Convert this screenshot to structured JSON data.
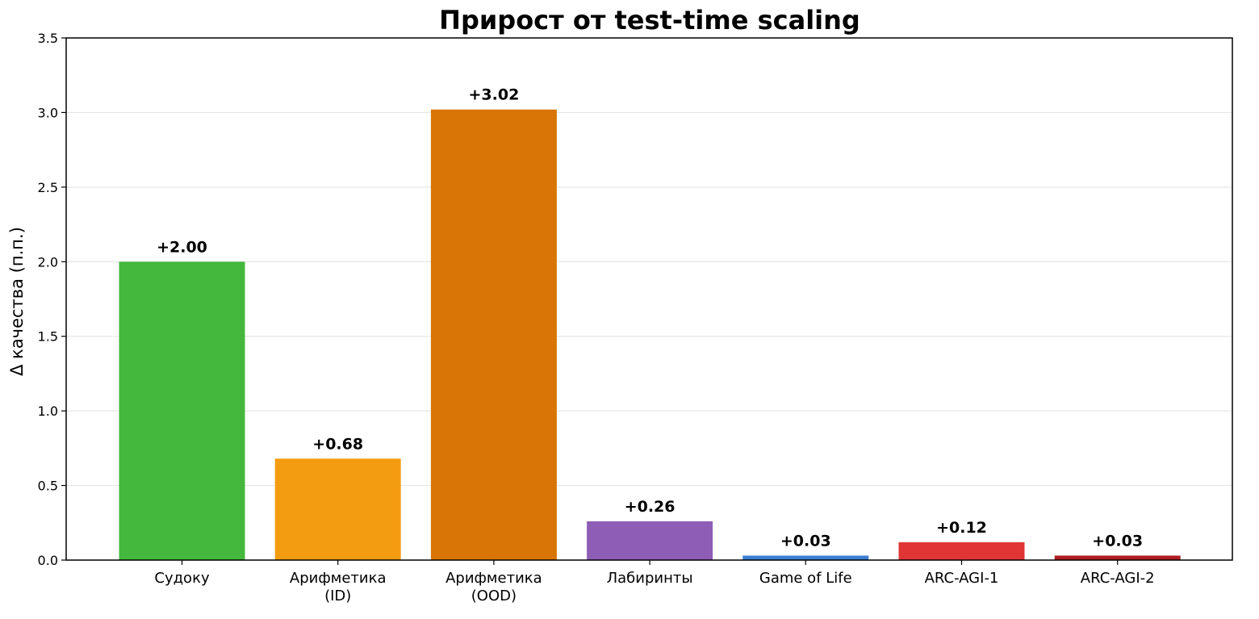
{
  "chart_data": {
    "type": "bar",
    "title": "Прирост от test-time scaling",
    "xlabel": "",
    "ylabel": "Δ качества (п.п.)",
    "ylim": [
      0,
      3.5
    ],
    "yticks": [
      "0.0",
      "0.5",
      "1.0",
      "1.5",
      "2.0",
      "2.5",
      "3.0",
      "3.5"
    ],
    "ytick_values": [
      0,
      0.5,
      1.0,
      1.5,
      2.0,
      2.5,
      3.0,
      3.5
    ],
    "grid": "horizontal",
    "categories": [
      [
        "Судоку"
      ],
      [
        "Арифметика",
        "(ID)"
      ],
      [
        "Арифметика",
        "(OOD)"
      ],
      [
        "Лабиринты"
      ],
      [
        "Game of Life"
      ],
      [
        "ARC-AGI-1"
      ],
      [
        "ARC-AGI-2"
      ]
    ],
    "values": [
      2.0,
      0.68,
      3.02,
      0.26,
      0.03,
      0.12,
      0.03
    ],
    "value_labels": [
      "+2.00",
      "+0.68",
      "+3.02",
      "+0.26",
      "+0.03",
      "+0.12",
      "+0.03"
    ],
    "colors": [
      "#43b83d",
      "#f39c12",
      "#d87506",
      "#8e5db5",
      "#3b7fd0",
      "#e03535",
      "#b01e22"
    ]
  }
}
